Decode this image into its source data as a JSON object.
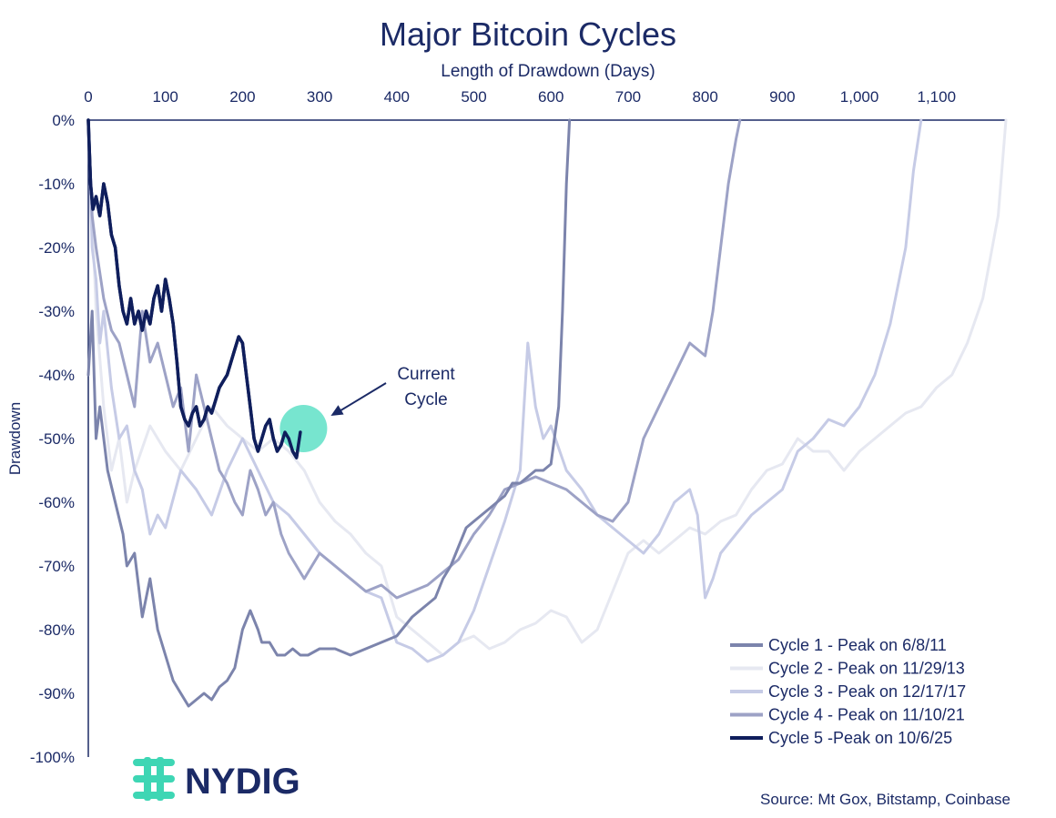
{
  "chart_data": {
    "type": "line",
    "title": "Major Bitcoin Cycles",
    "xlabel": "Length of Drawdown (Days)",
    "ylabel": "Drawdown",
    "xlim": [
      0,
      1190
    ],
    "ylim": [
      -100,
      0
    ],
    "x_ticks": [
      0,
      100,
      200,
      300,
      400,
      500,
      600,
      700,
      800,
      900,
      1000,
      1100
    ],
    "x_tick_labels": [
      "0",
      "100",
      "200",
      "300",
      "400",
      "500",
      "600",
      "700",
      "800",
      "900",
      "1,000",
      "1,100"
    ],
    "y_ticks": [
      0,
      -10,
      -20,
      -30,
      -40,
      -50,
      -60,
      -70,
      -80,
      -90,
      -100
    ],
    "y_tick_labels": [
      "0%",
      "-10%",
      "-20%",
      "-30%",
      "-40%",
      "-50%",
      "-60%",
      "-70%",
      "-80%",
      "-90%",
      "-100%"
    ],
    "legend_position": "bottom-right",
    "grid": false,
    "series": [
      {
        "name": "Cycle 1 - Peak on 6/8/11",
        "color": "#7c84ac",
        "x": [
          0,
          5,
          10,
          15,
          25,
          35,
          45,
          50,
          60,
          70,
          80,
          90,
          100,
          110,
          120,
          130,
          140,
          150,
          160,
          170,
          180,
          190,
          200,
          210,
          220,
          225,
          235,
          245,
          255,
          265,
          275,
          285,
          300,
          320,
          340,
          360,
          380,
          400,
          420,
          430,
          440,
          450,
          460,
          470,
          480,
          490,
          500,
          510,
          520,
          530,
          540,
          550,
          560,
          570,
          580,
          590,
          600,
          610,
          615,
          620,
          624
        ],
        "y": [
          -40,
          -30,
          -50,
          -45,
          -55,
          -60,
          -65,
          -70,
          -68,
          -78,
          -72,
          -80,
          -84,
          -88,
          -90,
          -92,
          -91,
          -90,
          -91,
          -89,
          -88,
          -86,
          -80,
          -77,
          -80,
          -82,
          -82,
          -84,
          -84,
          -83,
          -84,
          -84,
          -83,
          -83,
          -84,
          -83,
          -82,
          -81,
          -78,
          -77,
          -76,
          -75,
          -72,
          -70,
          -67,
          -64,
          -63,
          -62,
          -61,
          -60,
          -59,
          -57,
          -57,
          -56,
          -55,
          -55,
          -54,
          -45,
          -30,
          -10,
          0
        ]
      },
      {
        "name": "Cycle 2 - Peak on 11/29/13",
        "color": "#e6e8f1",
        "x": [
          0,
          5,
          10,
          20,
          30,
          40,
          50,
          60,
          80,
          100,
          120,
          140,
          160,
          180,
          200,
          220,
          240,
          260,
          280,
          300,
          320,
          340,
          360,
          380,
          400,
          420,
          440,
          460,
          480,
          500,
          520,
          540,
          560,
          580,
          600,
          620,
          640,
          660,
          680,
          700,
          720,
          740,
          760,
          780,
          800,
          820,
          840,
          860,
          880,
          900,
          920,
          940,
          960,
          980,
          1000,
          1020,
          1040,
          1060,
          1080,
          1100,
          1120,
          1140,
          1160,
          1180,
          1190
        ],
        "y": [
          0,
          -15,
          -30,
          -45,
          -55,
          -50,
          -60,
          -55,
          -48,
          -52,
          -55,
          -50,
          -45,
          -48,
          -50,
          -52,
          -50,
          -52,
          -55,
          -60,
          -63,
          -65,
          -68,
          -70,
          -78,
          -80,
          -82,
          -84,
          -82,
          -81,
          -83,
          -82,
          -80,
          -79,
          -77,
          -78,
          -82,
          -80,
          -74,
          -68,
          -66,
          -68,
          -66,
          -64,
          -65,
          -63,
          -62,
          -58,
          -55,
          -54,
          -50,
          -52,
          -52,
          -55,
          -52,
          -50,
          -48,
          -46,
          -45,
          -42,
          -40,
          -35,
          -28,
          -15,
          0
        ]
      },
      {
        "name": "Cycle 3 - Peak on 12/17/17",
        "color": "#c6cbe6",
        "x": [
          0,
          5,
          10,
          15,
          20,
          30,
          40,
          50,
          60,
          70,
          80,
          90,
          100,
          120,
          140,
          160,
          180,
          200,
          220,
          240,
          260,
          280,
          300,
          320,
          340,
          360,
          380,
          400,
          420,
          440,
          460,
          480,
          500,
          520,
          540,
          560,
          570,
          580,
          590,
          600,
          620,
          640,
          660,
          680,
          700,
          720,
          740,
          760,
          780,
          790,
          800,
          810,
          820,
          840,
          860,
          880,
          900,
          920,
          940,
          960,
          980,
          1000,
          1020,
          1040,
          1060,
          1070,
          1080
        ],
        "y": [
          0,
          -20,
          -25,
          -35,
          -30,
          -42,
          -50,
          -48,
          -55,
          -58,
          -65,
          -62,
          -64,
          -55,
          -58,
          -62,
          -55,
          -50,
          -55,
          -60,
          -62,
          -65,
          -68,
          -70,
          -72,
          -74,
          -75,
          -82,
          -83,
          -85,
          -84,
          -82,
          -77,
          -70,
          -63,
          -55,
          -35,
          -45,
          -50,
          -48,
          -55,
          -58,
          -62,
          -64,
          -66,
          -68,
          -65,
          -60,
          -58,
          -62,
          -75,
          -72,
          -68,
          -65,
          -62,
          -60,
          -58,
          -52,
          -50,
          -47,
          -48,
          -45,
          -40,
          -32,
          -20,
          -8,
          0
        ]
      },
      {
        "name": "Cycle 4 - Peak on 11/10/21",
        "color": "#9da2c6",
        "x": [
          0,
          5,
          10,
          20,
          30,
          40,
          50,
          60,
          70,
          80,
          90,
          100,
          110,
          120,
          130,
          140,
          150,
          160,
          170,
          180,
          190,
          200,
          210,
          220,
          230,
          240,
          250,
          260,
          270,
          280,
          290,
          300,
          320,
          340,
          360,
          380,
          400,
          420,
          440,
          460,
          480,
          500,
          520,
          540,
          560,
          580,
          600,
          620,
          640,
          660,
          680,
          700,
          720,
          740,
          760,
          780,
          800,
          810,
          820,
          830,
          840,
          845
        ],
        "y": [
          0,
          -15,
          -20,
          -28,
          -33,
          -35,
          -40,
          -45,
          -30,
          -38,
          -35,
          -40,
          -45,
          -42,
          -52,
          -40,
          -45,
          -50,
          -55,
          -57,
          -60,
          -62,
          -55,
          -58,
          -62,
          -60,
          -65,
          -68,
          -70,
          -72,
          -70,
          -68,
          -70,
          -72,
          -74,
          -73,
          -75,
          -74,
          -73,
          -71,
          -69,
          -65,
          -62,
          -58,
          -57,
          -56,
          -57,
          -58,
          -60,
          -62,
          -63,
          -60,
          -50,
          -45,
          -40,
          -35,
          -37,
          -30,
          -20,
          -10,
          -3,
          0
        ]
      },
      {
        "name": "Cycle 5 -Peak on 10/6/25",
        "color": "#0f1e5c",
        "x": [
          0,
          3,
          6,
          10,
          15,
          20,
          25,
          30,
          35,
          40,
          45,
          50,
          55,
          60,
          65,
          70,
          75,
          80,
          85,
          90,
          95,
          100,
          105,
          110,
          115,
          120,
          125,
          130,
          135,
          140,
          145,
          150,
          155,
          160,
          165,
          170,
          175,
          180,
          185,
          190,
          195,
          200,
          205,
          210,
          215,
          220,
          225,
          230,
          235,
          240,
          245,
          250,
          255,
          260,
          265,
          270,
          275
        ],
        "y": [
          0,
          -10,
          -14,
          -12,
          -15,
          -10,
          -13,
          -18,
          -20,
          -26,
          -30,
          -32,
          -28,
          -32,
          -30,
          -33,
          -30,
          -32,
          -28,
          -26,
          -30,
          -25,
          -28,
          -32,
          -38,
          -45,
          -47,
          -48,
          -46,
          -45,
          -48,
          -47,
          -45,
          -46,
          -44,
          -42,
          -41,
          -40,
          -38,
          -36,
          -34,
          -35,
          -40,
          -45,
          -50,
          -52,
          -50,
          -48,
          -47,
          -50,
          -52,
          -51,
          -49,
          -50,
          -52,
          -53,
          -49
        ]
      }
    ],
    "annotation": {
      "text_line1": "Current",
      "text_line2": "Cycle",
      "target_x": 272,
      "target_y": -49
    }
  },
  "source_text": "Source: Mt Gox, Bitstamp, Coinbase",
  "logo_text": "NYDIG",
  "colors": {
    "axis": "#1b2a66",
    "highlight": "#5fe0c7",
    "logo_icon": "#3ed6b4"
  }
}
